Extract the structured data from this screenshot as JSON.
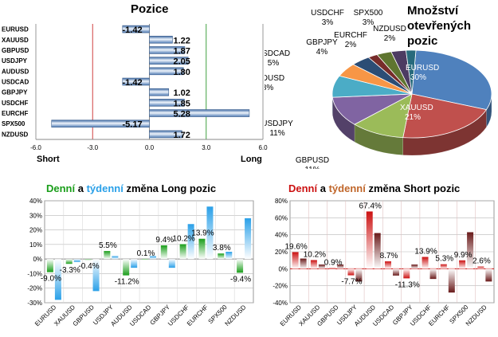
{
  "colors": {
    "long_green": "#1a9e1a",
    "weekly_blue": "#2aa0e8",
    "short_red": "#cc1111",
    "weekly_brown": "#c0662a",
    "bar_steel": "#5f86b8",
    "gridline": "#b8b8b8",
    "negline": "#d04040",
    "posline": "#40a040"
  },
  "charts": {
    "positions": {
      "title": "Pozice",
      "short_label": "Short",
      "long_label": "Long"
    },
    "pie": {
      "title_lines": [
        "Množství",
        "otevřených",
        "pozic"
      ]
    },
    "daily_long": {
      "title_parts": [
        "Denní",
        " a ",
        "týdenní",
        " změna Long pozic"
      ]
    },
    "daily_short": {
      "title_parts": [
        "Denní",
        " a ",
        "týdenní",
        " změna Short pozic"
      ]
    }
  },
  "chart_data": [
    {
      "type": "bar",
      "orientation": "horizontal",
      "title": "Pozice",
      "categories": [
        "EURUSD",
        "XAUUSD",
        "GBPUSD",
        "USDJPY",
        "AUDUSD",
        "USDCAD",
        "GBPJPY",
        "USDCHF",
        "EURCHF",
        "SPX500",
        "NZDUSD"
      ],
      "values": [
        -1.42,
        1.22,
        1.87,
        2.05,
        1.8,
        -1.42,
        1.02,
        1.85,
        5.28,
        -5.17,
        1.72
      ],
      "value_labels": [
        "-1.42",
        "1.22",
        "1.87",
        "2.05",
        "1.80",
        "-1.42",
        "1.02",
        "1.85",
        "5.28",
        "-5.17",
        "1.72"
      ],
      "xlim": [
        -6,
        6
      ],
      "xticks": [
        "-6.0",
        "-3.0",
        "0.0",
        "3.0",
        "6.0"
      ]
    },
    {
      "type": "pie",
      "title": "Množství otevřených pozic",
      "slices": [
        {
          "label": "EURUSD",
          "value": 30,
          "pct": "30%",
          "color": "#4f81bd"
        },
        {
          "label": "XAUUSD",
          "value": 21,
          "pct": "21%",
          "color": "#c0504d"
        },
        {
          "label": "GBPUSD",
          "value": 11,
          "pct": "11%",
          "color": "#9bbb59"
        },
        {
          "label": "USDJPY",
          "value": 11,
          "pct": "11%",
          "color": "#8064a2"
        },
        {
          "label": "AUDUSD",
          "value": 8,
          "pct": "8%",
          "color": "#4bacc6"
        },
        {
          "label": "USDCAD",
          "value": 5,
          "pct": "5%",
          "color": "#f79646"
        },
        {
          "label": "GBPJPY",
          "value": 4,
          "pct": "4%",
          "color": "#2c4d75"
        },
        {
          "label": "EURCHF",
          "value": 2,
          "pct": "2%",
          "color": "#772c2a"
        },
        {
          "label": "USDCHF",
          "value": 3,
          "pct": "3%",
          "color": "#5f7530"
        },
        {
          "label": "SPX500",
          "value": 3,
          "pct": "3%",
          "color": "#4d3b62"
        },
        {
          "label": "NZDUSD",
          "value": 2,
          "pct": "2%",
          "color": "#276a7c"
        }
      ]
    },
    {
      "type": "bar",
      "title": "Denní a týdenní změna Long pozic",
      "categories": [
        "EURUSD",
        "XAUUSD",
        "GBPUSD",
        "USDJPY",
        "AUDUSD",
        "USDCAD",
        "GBPJPY",
        "USDCHF",
        "EURCHF",
        "SPX500",
        "NZDUSD"
      ],
      "series": [
        {
          "name": "Denní",
          "values": [
            -9.0,
            -3.3,
            -0.4,
            5.5,
            -11.2,
            0.1,
            9.4,
            10.2,
            13.9,
            3.8,
            -9.4
          ]
        },
        {
          "name": "týdenní",
          "values": [
            -28,
            -2,
            -22,
            2,
            -6,
            2,
            -6,
            24,
            36,
            5,
            28
          ]
        }
      ],
      "value_labels": [
        "-9.0%",
        "-3.3%",
        "-0.4%",
        "5.5%",
        "-11.2%",
        "0.1%",
        "9.4%",
        "10.2%",
        "13.9%",
        "3.8%",
        "-9.4%"
      ],
      "ylim": [
        -30,
        40
      ],
      "yticks": [
        "40%",
        "30%",
        "20%",
        "10%",
        "0%",
        "-10%",
        "-20%",
        "-30%"
      ]
    },
    {
      "type": "bar",
      "title": "Denní a týdenní změna Short pozic",
      "categories": [
        "EURUSD",
        "XAUUSD",
        "GBPUSD",
        "USDJPY",
        "AUDUSD",
        "USDCAD",
        "GBPJPY",
        "USDCHF",
        "EURCHF",
        "SPX500",
        "NZDUSD"
      ],
      "series": [
        {
          "name": "Denní",
          "values": [
            19.6,
            10.2,
            0.9,
            -7.7,
            67.4,
            8.7,
            -11.3,
            13.9,
            5.3,
            9.9,
            2.6
          ]
        },
        {
          "name": "týdenní",
          "values": [
            12,
            5,
            5,
            -15,
            42,
            -8,
            5,
            -12,
            -28,
            43,
            -15
          ]
        }
      ],
      "value_labels": [
        "19.6%",
        "10.2%",
        "0.9%",
        "-7.7%",
        "67.4%",
        "8.7%",
        "-11.3%",
        "13.9%",
        "5.3%",
        "9.9%",
        "2.6%"
      ],
      "ylim": [
        -40,
        80
      ],
      "yticks": [
        "80%",
        "60%",
        "40%",
        "20%",
        "0%",
        "-20%",
        "-40%"
      ]
    }
  ]
}
